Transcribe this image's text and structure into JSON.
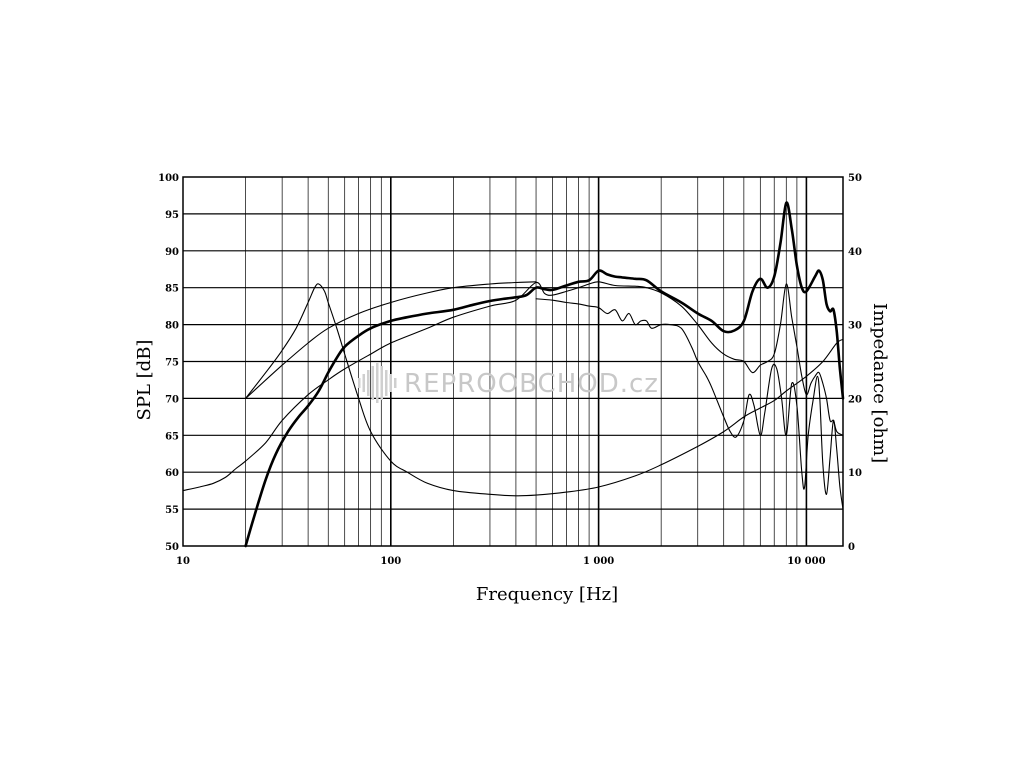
{
  "chart_data": {
    "type": "line",
    "xlabel": "Frequency [Hz]",
    "ylabel_left": "SPL [dB]",
    "ylabel_right": "Impedance [ohm]",
    "x_scale": "log",
    "xlim": [
      10,
      15000
    ],
    "ylim_left": [
      50,
      100
    ],
    "ylim_right": [
      0,
      50
    ],
    "grid": true,
    "x_tick_labels": [
      {
        "value": 10,
        "label": "10"
      },
      {
        "value": 100,
        "label": "100"
      },
      {
        "value": 1000,
        "label": "1 000"
      },
      {
        "value": 10000,
        "label": "10 000"
      }
    ],
    "y_left_ticks": [
      "50",
      "55",
      "60",
      "65",
      "70",
      "75",
      "80",
      "85",
      "90",
      "95",
      "100"
    ],
    "y_right_ticks": [
      "0",
      "10",
      "20",
      "30",
      "40",
      "50"
    ],
    "series": [
      {
        "axis": "left",
        "style": "thick",
        "points": [
          [
            20,
            50
          ],
          [
            22,
            54
          ],
          [
            25,
            59
          ],
          [
            28,
            62.5
          ],
          [
            32,
            65.5
          ],
          [
            36,
            67.5
          ],
          [
            40,
            69
          ],
          [
            45,
            71
          ],
          [
            50,
            73.5
          ],
          [
            55,
            75.5
          ],
          [
            60,
            77
          ],
          [
            70,
            78.5
          ],
          [
            80,
            79.5
          ],
          [
            100,
            80.5
          ],
          [
            120,
            81
          ],
          [
            150,
            81.5
          ],
          [
            200,
            82
          ],
          [
            250,
            82.7
          ],
          [
            300,
            83.2
          ],
          [
            350,
            83.5
          ],
          [
            400,
            83.7
          ],
          [
            450,
            84
          ],
          [
            500,
            85
          ],
          [
            550,
            84.8
          ],
          [
            600,
            84.7
          ],
          [
            700,
            85.3
          ],
          [
            800,
            85.8
          ],
          [
            900,
            86
          ],
          [
            1000,
            87.3
          ],
          [
            1100,
            86.8
          ],
          [
            1200,
            86.5
          ],
          [
            1300,
            86.4
          ],
          [
            1500,
            86.2
          ],
          [
            1700,
            86
          ],
          [
            2000,
            84.5
          ],
          [
            2500,
            83
          ],
          [
            3000,
            81.5
          ],
          [
            3500,
            80.5
          ],
          [
            4000,
            79.1
          ],
          [
            4500,
            79.2
          ],
          [
            5000,
            80.5
          ],
          [
            5500,
            84.5
          ],
          [
            6000,
            86.2
          ],
          [
            6500,
            85
          ],
          [
            7000,
            86.5
          ],
          [
            7500,
            91
          ],
          [
            8000,
            96.5
          ],
          [
            8500,
            93
          ],
          [
            9000,
            88
          ],
          [
            9500,
            85
          ],
          [
            10000,
            84.5
          ],
          [
            11000,
            86.5
          ],
          [
            11500,
            87.3
          ],
          [
            12000,
            86
          ],
          [
            12500,
            82.8
          ],
          [
            13000,
            81.8
          ],
          [
            13500,
            82
          ],
          [
            14000,
            79
          ],
          [
            14500,
            74
          ],
          [
            15000,
            70
          ]
        ]
      },
      {
        "axis": "left",
        "style": "thin",
        "points": [
          [
            10,
            57.5
          ],
          [
            12,
            58
          ],
          [
            14,
            58.5
          ],
          [
            16,
            59.3
          ],
          [
            18,
            60.5
          ],
          [
            20,
            61.5
          ],
          [
            25,
            64
          ],
          [
            30,
            67
          ],
          [
            40,
            70.5
          ],
          [
            50,
            72.5
          ],
          [
            60,
            74
          ],
          [
            80,
            76
          ],
          [
            100,
            77.5
          ],
          [
            150,
            79.5
          ],
          [
            200,
            81
          ],
          [
            300,
            82.5
          ],
          [
            400,
            83.3
          ],
          [
            500,
            85.7
          ],
          [
            550,
            84.2
          ],
          [
            600,
            84
          ],
          [
            700,
            84.5
          ],
          [
            800,
            85
          ],
          [
            900,
            85.5
          ],
          [
            1000,
            85.8
          ],
          [
            1200,
            85.3
          ],
          [
            1500,
            85.2
          ],
          [
            1700,
            85
          ],
          [
            2000,
            84.3
          ],
          [
            2500,
            82.5
          ],
          [
            3000,
            80
          ],
          [
            3500,
            77.5
          ],
          [
            4000,
            76
          ],
          [
            4500,
            75.3
          ],
          [
            5000,
            75
          ],
          [
            5500,
            73.5
          ],
          [
            6000,
            74.5
          ],
          [
            6500,
            75
          ],
          [
            7000,
            76
          ],
          [
            7500,
            80
          ],
          [
            8000,
            85.5
          ],
          [
            8500,
            81
          ],
          [
            9000,
            77
          ],
          [
            9500,
            73
          ],
          [
            10000,
            70.5
          ],
          [
            10500,
            72
          ],
          [
            11000,
            73
          ],
          [
            11500,
            73.5
          ],
          [
            12000,
            72
          ],
          [
            12500,
            70
          ],
          [
            13000,
            67
          ],
          [
            13500,
            67
          ],
          [
            14000,
            65.5
          ],
          [
            15000,
            65
          ]
        ]
      },
      {
        "axis": "left",
        "style": "thin",
        "points": [
          [
            500,
            83.5
          ],
          [
            600,
            83.3
          ],
          [
            700,
            83
          ],
          [
            800,
            82.8
          ],
          [
            900,
            82.5
          ],
          [
            1000,
            82.3
          ],
          [
            1100,
            81.5
          ],
          [
            1200,
            82
          ],
          [
            1300,
            80.5
          ],
          [
            1400,
            81.5
          ],
          [
            1500,
            80
          ],
          [
            1600,
            80.5
          ],
          [
            1700,
            80.5
          ],
          [
            1800,
            79.5
          ],
          [
            2000,
            80
          ],
          [
            2200,
            80
          ],
          [
            2500,
            79.5
          ],
          [
            2800,
            77
          ],
          [
            3000,
            75
          ],
          [
            3300,
            73
          ],
          [
            3500,
            71.5
          ],
          [
            4000,
            67.5
          ],
          [
            4300,
            65.5
          ],
          [
            4600,
            64.8
          ],
          [
            5000,
            67
          ],
          [
            5300,
            70.5
          ],
          [
            5600,
            69
          ],
          [
            6000,
            65
          ],
          [
            6300,
            68
          ],
          [
            6800,
            74
          ],
          [
            7200,
            74
          ],
          [
            7600,
            70
          ],
          [
            8000,
            65
          ],
          [
            8500,
            72
          ],
          [
            9000,
            69
          ],
          [
            9500,
            60
          ],
          [
            9800,
            58
          ],
          [
            10200,
            65
          ],
          [
            10800,
            70
          ],
          [
            11300,
            73
          ],
          [
            11600,
            70
          ],
          [
            12000,
            61
          ],
          [
            12500,
            57
          ],
          [
            13000,
            62
          ],
          [
            13500,
            67
          ],
          [
            14000,
            63
          ],
          [
            14500,
            58
          ],
          [
            15000,
            55
          ]
        ]
      },
      {
        "axis": "right",
        "style": "thin",
        "points": [
          [
            20,
            20
          ],
          [
            25,
            23.5
          ],
          [
            30,
            26.5
          ],
          [
            35,
            29.5
          ],
          [
            40,
            33
          ],
          [
            43,
            35
          ],
          [
            45,
            35.5
          ],
          [
            48,
            34.5
          ],
          [
            50,
            33
          ],
          [
            55,
            29.5
          ],
          [
            60,
            26
          ],
          [
            70,
            20
          ],
          [
            80,
            15.5
          ],
          [
            100,
            11.5
          ],
          [
            120,
            10
          ],
          [
            150,
            8.5
          ],
          [
            200,
            7.5
          ],
          [
            300,
            7
          ],
          [
            400,
            6.8
          ],
          [
            500,
            6.9
          ],
          [
            700,
            7.3
          ],
          [
            1000,
            8
          ],
          [
            1500,
            9.5
          ],
          [
            2000,
            11
          ],
          [
            3000,
            13.5
          ],
          [
            4000,
            15.5
          ],
          [
            5000,
            17.5
          ],
          [
            6000,
            18.7
          ],
          [
            7000,
            19.7
          ],
          [
            8000,
            21
          ],
          [
            10000,
            23
          ],
          [
            12000,
            25
          ],
          [
            14000,
            27.5
          ],
          [
            15000,
            28
          ]
        ]
      },
      {
        "axis": "right",
        "style": "thin",
        "points": [
          [
            20,
            20
          ],
          [
            30,
            24.5
          ],
          [
            40,
            27.5
          ],
          [
            50,
            29.5
          ],
          [
            70,
            31.5
          ],
          [
            100,
            33
          ],
          [
            150,
            34.3
          ],
          [
            200,
            35
          ],
          [
            300,
            35.5
          ],
          [
            400,
            35.7
          ],
          [
            500,
            35.8
          ]
        ]
      }
    ],
    "watermark": "REPROOBCHOD.cz"
  }
}
